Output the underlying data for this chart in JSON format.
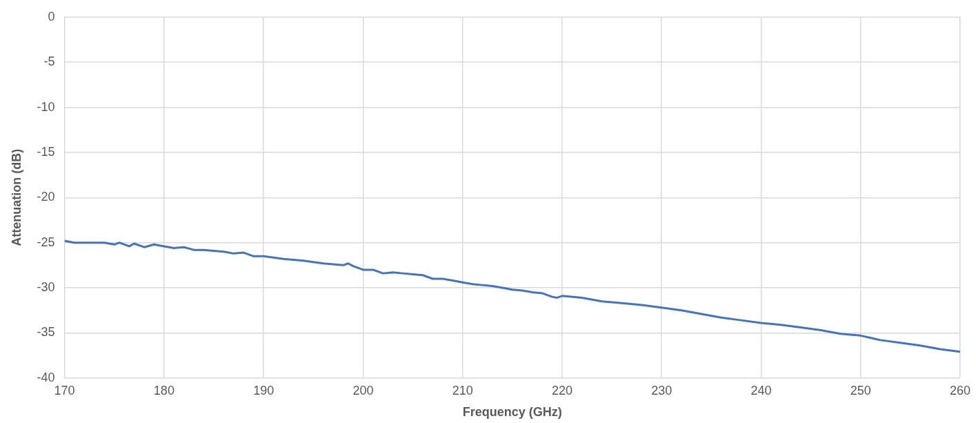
{
  "chart_data": {
    "type": "line",
    "xlabel": "Frequency (GHz)",
    "ylabel": "Attenuation (dB)",
    "xlim": [
      170,
      260
    ],
    "xticks": [
      170,
      180,
      190,
      200,
      210,
      220,
      230,
      240,
      250,
      260
    ],
    "ylim": [
      -40,
      0
    ],
    "yticks": [
      -40,
      -35,
      -30,
      -25,
      -20,
      -15,
      -10,
      -5,
      0
    ],
    "grid": true,
    "legend": false,
    "marker": "none",
    "line_style": "solid",
    "series": [
      {
        "color": "#4472c4",
        "x": [
          170,
          171,
          173,
          174,
          175,
          175.5,
          176.5,
          177,
          178,
          179,
          180,
          181,
          182,
          183,
          184,
          185,
          186,
          187,
          188,
          189,
          190,
          192,
          194,
          196,
          198,
          198.5,
          199,
          200,
          201,
          202,
          203,
          204,
          205,
          206,
          207,
          208,
          209,
          210,
          211,
          212,
          213,
          214,
          215,
          216,
          217,
          218,
          219,
          219.5,
          220,
          222,
          224,
          226,
          228,
          230,
          232,
          234,
          236,
          238,
          240,
          242,
          244,
          246,
          248,
          250,
          252,
          254,
          256,
          258,
          260
        ],
        "values": [
          -24.8,
          -25.0,
          -25.0,
          -25.0,
          -25.2,
          -25.0,
          -25.4,
          -25.1,
          -25.5,
          -25.2,
          -25.4,
          -25.6,
          -25.5,
          -25.8,
          -25.8,
          -25.9,
          -26.0,
          -26.2,
          -26.1,
          -26.5,
          -26.5,
          -26.8,
          -27.0,
          -27.3,
          -27.5,
          -27.3,
          -27.6,
          -28.0,
          -28.0,
          -28.4,
          -28.3,
          -28.4,
          -28.5,
          -28.6,
          -29.0,
          -29.0,
          -29.2,
          -29.4,
          -29.6,
          -29.7,
          -29.8,
          -30.0,
          -30.2,
          -30.3,
          -30.5,
          -30.6,
          -31.0,
          -31.1,
          -30.9,
          -31.1,
          -31.5,
          -31.7,
          -31.9,
          -32.2,
          -32.5,
          -32.9,
          -33.3,
          -33.6,
          -33.9,
          -34.1,
          -34.4,
          -34.7,
          -35.1,
          -35.3,
          -35.8,
          -36.1,
          -36.4,
          -36.8,
          -37.1
        ]
      }
    ]
  }
}
